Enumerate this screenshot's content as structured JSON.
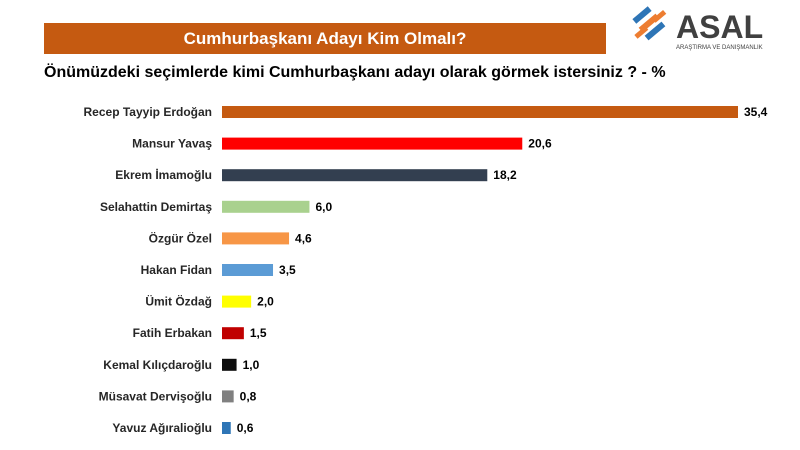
{
  "header": {
    "title": "Cumhurbaşkanı Adayı Kim Olmalı?",
    "logo_text": "ASAL",
    "logo_tagline": "ARAŞTIRMA VE DANIŞMANLIK"
  },
  "colors": {
    "banner": "#c55a11",
    "logo_blue": "#2e75b6",
    "logo_orange": "#ed7d31",
    "logo_text": "#404040"
  },
  "chart_data": {
    "type": "bar",
    "orientation": "horizontal",
    "title": "Önümüzdeki seçimlerde kimi Cumhurbaşkanı adayı olarak görmek istersiniz ? - %",
    "categories": [
      "Recep Tayyip Erdoğan",
      "Mansur Yavaş",
      "Ekrem İmamoğlu",
      "Selahattin Demirtaş",
      "Özgür Özel",
      "Hakan Fidan",
      "Ümit Özdağ",
      "Fatih Erbakan",
      "Kemal Kılıçdaroğlu",
      "Müsavat Dervişoğlu",
      "Yavuz Ağıralioğlu"
    ],
    "values": [
      35.4,
      20.6,
      18.2,
      6.0,
      4.6,
      3.5,
      2.0,
      1.5,
      1.0,
      0.8,
      0.6
    ],
    "value_labels": [
      "35,4",
      "20,6",
      "18,2",
      "6,0",
      "4,6",
      "3,5",
      "2,0",
      "1,5",
      "1,0",
      "0,8",
      "0,6"
    ],
    "bar_colors": [
      "#c55a11",
      "#ff0000",
      "#333f50",
      "#a9d18e",
      "#f79646",
      "#5b9bd5",
      "#ffff00",
      "#c00000",
      "#0d0d0d",
      "#808080",
      "#2e75b6"
    ],
    "xlim": [
      0,
      35.4
    ],
    "grid": false,
    "legend": "none"
  }
}
